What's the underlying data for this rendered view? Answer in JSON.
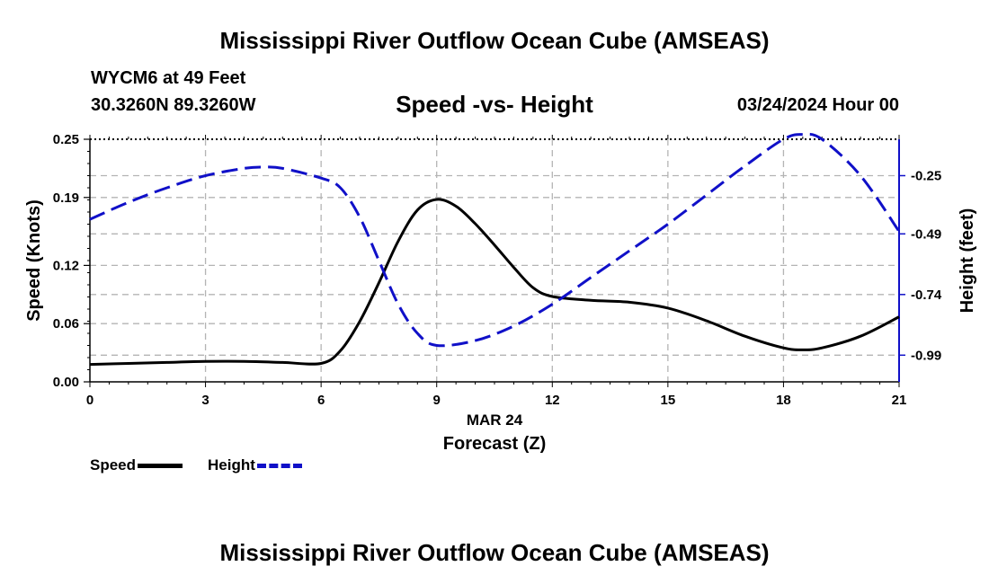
{
  "header": {
    "title": "Mississippi River Outflow Ocean Cube (AMSEAS)",
    "station": "WYCM6 at 49 Feet",
    "coords": "30.3260N  89.3260W",
    "subtitle": "Speed -vs- Height",
    "datetime": "03/24/2024 Hour 00"
  },
  "footer": {
    "title": "Mississippi River Outflow Ocean Cube (AMSEAS)"
  },
  "legend": {
    "speed": "Speed",
    "height": "Height"
  },
  "colors": {
    "speed": "#000000",
    "height": "#1010c8",
    "grid": "#b4b4b4"
  },
  "chart_data": {
    "type": "line",
    "title": "Speed -vs- Height",
    "xlabel": "Forecast (Z)",
    "xlabel_date": "MAR 24",
    "ylabel": "Speed (Knots)",
    "y2label": "Height (feet)",
    "xlim": [
      0,
      21
    ],
    "ylim": [
      0,
      0.25
    ],
    "y2lim": [
      -1.1,
      -0.1
    ],
    "x_ticks": [
      "0",
      "3",
      "6",
      "9",
      "12",
      "15",
      "18",
      "21"
    ],
    "y_ticks": [
      "0.00",
      "0.06",
      "0.12",
      "0.19",
      "0.25"
    ],
    "y2_ticks": [
      "-0.25",
      "-0.49",
      "-0.74",
      "-0.99"
    ],
    "grid": true,
    "series": [
      {
        "name": "Speed",
        "axis": "left",
        "style": "solid",
        "x": [
          0,
          1,
          2,
          3,
          4,
          5,
          6,
          6.5,
          7,
          7.5,
          8,
          8.5,
          9,
          9.5,
          10,
          10.5,
          11,
          11.5,
          12,
          13,
          14,
          15,
          16,
          17,
          18,
          18.5,
          19,
          20,
          21
        ],
        "values": [
          0.018,
          0.019,
          0.02,
          0.021,
          0.021,
          0.02,
          0.019,
          0.032,
          0.062,
          0.102,
          0.145,
          0.177,
          0.188,
          0.181,
          0.163,
          0.141,
          0.118,
          0.097,
          0.088,
          0.084,
          0.082,
          0.076,
          0.063,
          0.047,
          0.035,
          0.033,
          0.035,
          0.047,
          0.067
        ]
      },
      {
        "name": "Height",
        "axis": "right",
        "style": "dashed",
        "x": [
          0,
          1,
          2,
          3,
          4,
          4.5,
          5,
          6,
          6.5,
          7,
          7.5,
          8,
          8.5,
          9,
          10,
          11,
          12,
          13,
          14,
          15,
          16,
          17,
          18,
          18.5,
          19,
          20,
          21
        ],
        "values": [
          -0.43,
          -0.36,
          -0.3,
          -0.25,
          -0.22,
          -0.215,
          -0.22,
          -0.26,
          -0.3,
          -0.42,
          -0.6,
          -0.78,
          -0.9,
          -0.95,
          -0.93,
          -0.87,
          -0.78,
          -0.67,
          -0.56,
          -0.45,
          -0.33,
          -0.21,
          -0.1,
          -0.08,
          -0.1,
          -0.25,
          -0.48
        ]
      }
    ]
  }
}
